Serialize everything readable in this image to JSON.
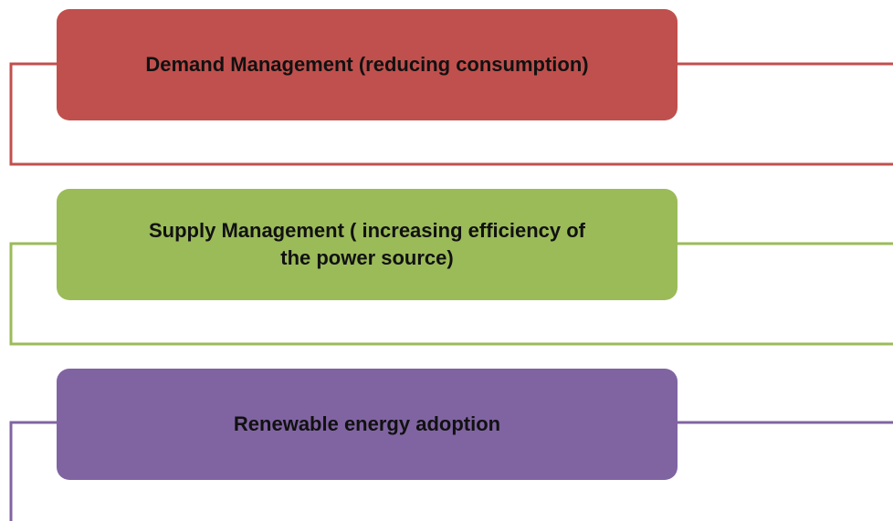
{
  "nodes": [
    {
      "label": "Demand Management (reducing consumption)"
    },
    {
      "label": "Supply Management ( increasing efficiency of the power source)"
    },
    {
      "label": "Renewable energy adoption"
    }
  ]
}
